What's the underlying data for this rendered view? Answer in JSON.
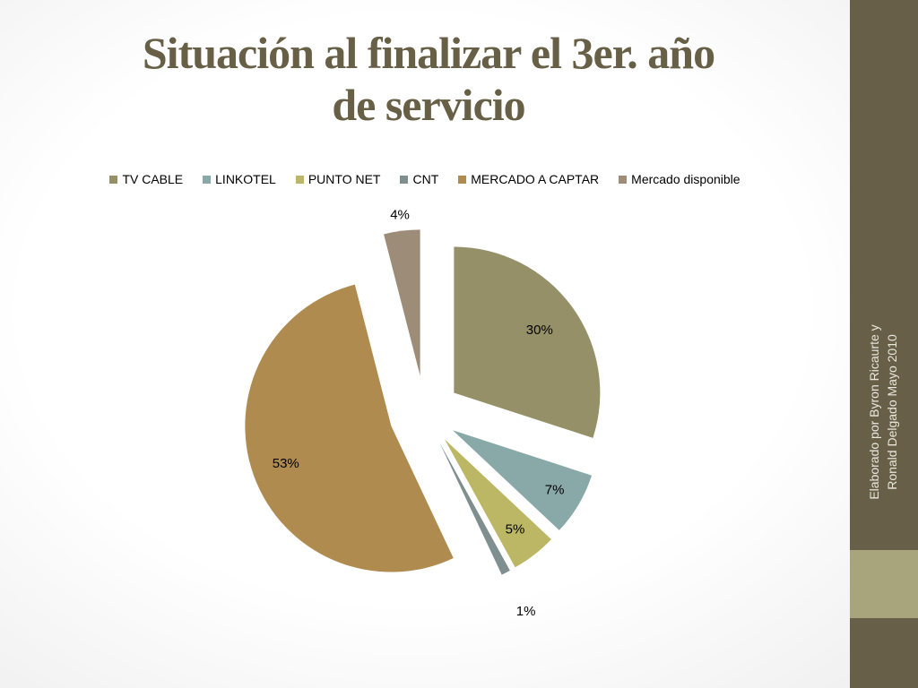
{
  "title": {
    "line1": "Situación al finalizar el 3er. año",
    "line2": "de servicio"
  },
  "credit": {
    "line1": "Elaborado por Byron Ricaurte y",
    "line2": "Ronald Delgado Mayo 2010"
  },
  "colors": {
    "title": "#676047",
    "sidebar": "#675f48",
    "sidebar_accent": "#a8a47c"
  },
  "chart_data": {
    "type": "pie",
    "title": "",
    "legend_position": "top",
    "start": "12 o'clock, clockwise",
    "exploded": true,
    "slices": [
      {
        "name": "TV CABLE",
        "value": 30,
        "label": "30%",
        "color": "#969069"
      },
      {
        "name": "LINKOTEL",
        "value": 7,
        "label": "7%",
        "color": "#89a8a8"
      },
      {
        "name": "PUNTO NET",
        "value": 5,
        "label": "5%",
        "color": "#bbb764"
      },
      {
        "name": "CNT",
        "value": 1,
        "label": "1%",
        "color": "#7f8f8f"
      },
      {
        "name": "MERCADO A CAPTAR",
        "value": 53,
        "label": "53%",
        "color": "#b08b50"
      },
      {
        "name": "Mercado disponible",
        "value": 4,
        "label": "4%",
        "color": "#9d8c77"
      }
    ]
  }
}
